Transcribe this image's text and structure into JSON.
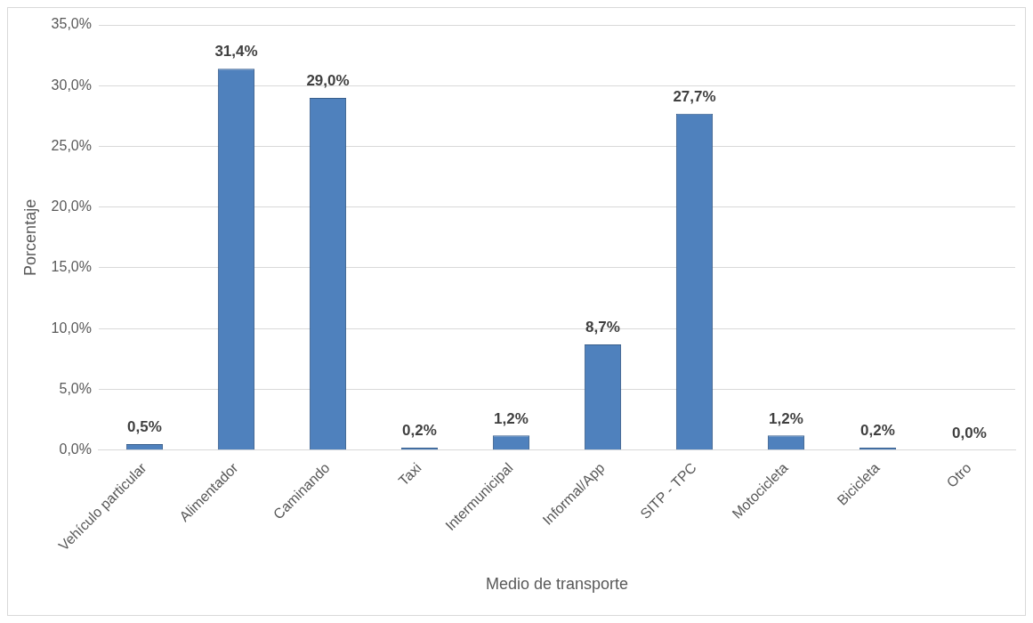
{
  "chart_data": {
    "type": "bar",
    "xlabel": "Medio de transporte",
    "ylabel": "Porcentaje",
    "categories": [
      "Vehículo particular",
      "Alimentador",
      "Caminando",
      "Taxi",
      "Intermunicipal",
      "Informal/App",
      "SITP - TPC",
      "Motocicleta",
      "Bicicleta",
      "Otro"
    ],
    "values": [
      0.5,
      31.4,
      29.0,
      0.2,
      1.2,
      8.7,
      27.7,
      1.2,
      0.2,
      0.0
    ],
    "value_labels": [
      "0,5%",
      "31,4%",
      "29,0%",
      "0,2%",
      "1,2%",
      "8,7%",
      "27,7%",
      "1,2%",
      "0,2%",
      "0,0%"
    ],
    "color": "#4f81bd",
    "ylim": [
      0,
      35
    ],
    "yticks": [
      {
        "value": 0,
        "label": "0,0%"
      },
      {
        "value": 5,
        "label": "5,0%"
      },
      {
        "value": 10,
        "label": "10,0%"
      },
      {
        "value": 15,
        "label": "15,0%"
      },
      {
        "value": 20,
        "label": "20,0%"
      },
      {
        "value": 25,
        "label": "25,0%"
      },
      {
        "value": 30,
        "label": "30,0%"
      },
      {
        "value": 35,
        "label": "35,0%"
      }
    ],
    "grid": "y",
    "legend": false
  }
}
